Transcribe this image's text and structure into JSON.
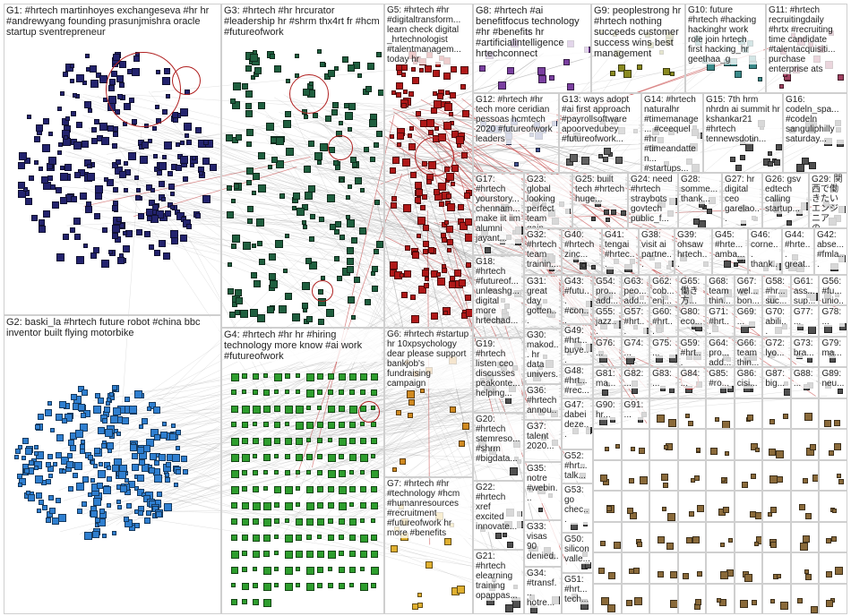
{
  "title": "",
  "groups": [
    {
      "id": "g1",
      "label": "G1: #hrtech martinhoyes exchangeseva #hr hr #andrewyang founding prasunjmishra oracle startup sventrepreneur",
      "color": "#23236e"
    },
    {
      "id": "g2",
      "label": "G2: baski_la #hrtech future robot #china bbc inventor built flying motorbike",
      "color": "#2f7fd0"
    },
    {
      "id": "g3",
      "label": "G3: #hrtech #hr hrcurator #leadership hr #shrm thx4rt fr #hcm #futureofwork",
      "color": "#1f5f3f"
    },
    {
      "id": "g4",
      "label": "G4: #hrtech #hr hr #hiring technology more know #ai work #futureofwork",
      "color": "#2e9e2e"
    },
    {
      "id": "g5",
      "label": "G5: #hrtech #hr #digitaltransform... learn check digital _hrtechnologist #talentmanagem... today hr",
      "color": "#b01818"
    },
    {
      "id": "g6",
      "label": "G6: #hrtech #startup hr 10xpsychology dear please support bankjob's fundraising campaign",
      "color": "#d08a20"
    },
    {
      "id": "g7",
      "label": "G7: #hrtech #hr #technology #hcm #humanresources #recruitment #futureofwork hr more #benefits",
      "color": "#e0b030"
    },
    {
      "id": "g8",
      "label": "G8: #hrtech #ai benefitfocus technology #hr #benefits hr #artificialintelligence hrtechconnect",
      "color": "#7a3fa0"
    },
    {
      "id": "g9",
      "label": "G9: peoplestrong hr #hrtech nothing succeeds customer success wins best management",
      "color": "#8a8a20"
    },
    {
      "id": "g10",
      "label": "G10: future #hrtech #hacking hackinghr work role join hrtech first hacking_hr geethaa_g",
      "color": "#3a8a8a"
    },
    {
      "id": "g11",
      "label": "G11: #hrtech recruitingdaily #hrtx #recruiting time candidate #talentacquisiti... purchase enterprise ats",
      "color": "#a04060"
    },
    {
      "id": "g12",
      "label": "G12: #hrtech #hr tech more ceridian pessoas hcmtech 2020 #futureofwork leaders",
      "color": "#405090"
    },
    {
      "id": "g13",
      "label": "G13: ways adopt #ai first approach #payrollsoftware apoorvedubey #futureofwork...",
      "color": "#606060"
    },
    {
      "id": "g14",
      "label": "G14: #hrtech naturalhr #timemanage... #ceequel #hr #timeandatten... #startups...",
      "color": "#505050"
    },
    {
      "id": "g15",
      "label": "G15: 7th hrm nhrdn ai summit hr kshankar21 #hrtech tennewsdotin...",
      "color": "#505050"
    },
    {
      "id": "g16",
      "label": "G16: codeln_spa... #codeln sanguliphilly saturday...",
      "color": "#505050"
    },
    {
      "id": "g17",
      "label": "G17: #hrtech yourstory... chennam... make iit iim alumni jayant...",
      "color": "#505050"
    },
    {
      "id": "g18",
      "label": "G18: #hrtech #futureof... unleashg... digital more hrtechad...",
      "color": "#505050"
    },
    {
      "id": "g19",
      "label": "G19: #hrtech listen ceo discusses peakonte... helping...",
      "color": "#505050"
    },
    {
      "id": "g20",
      "label": "G20: #hrtech stemreso... #shrm #bigdata...",
      "color": "#505050"
    },
    {
      "id": "g21",
      "label": "G21: #hrtech elearning training opappas...",
      "color": "#505050"
    },
    {
      "id": "g22",
      "label": "G22: #hrtech xref excited innovate...",
      "color": "#505050"
    },
    {
      "id": "g23",
      "label": "G23: global looking perfect team gain...",
      "color": "#505050"
    },
    {
      "id": "g24",
      "label": "G24: need #hrtech straybots govtech public_f...",
      "color": "#505050"
    },
    {
      "id": "g25",
      "label": "G25: built tech #hrtech huge...",
      "color": "#505050"
    },
    {
      "id": "g26",
      "label": "G26: gsv edtech calling startup...",
      "color": "#505050"
    },
    {
      "id": "g27",
      "label": "G27: hr digital ceo garelao...",
      "color": "#505050"
    },
    {
      "id": "g28",
      "label": "G28: somme... thank...",
      "color": "#505050"
    },
    {
      "id": "g29",
      "label": "G29: 関西で働きたいエンジニアの...",
      "color": "#505050"
    },
    {
      "id": "g30",
      "label": "G30: makod... hr data univers...",
      "color": "#505050"
    },
    {
      "id": "g31",
      "label": "G31: great day gotten...",
      "color": "#505050"
    },
    {
      "id": "g32",
      "label": "G32: #hrtech team trainin...",
      "color": "#505050"
    },
    {
      "id": "g33",
      "label": "G33: visas 90 denied...",
      "color": "#505050"
    },
    {
      "id": "g34",
      "label": "G34: #transf... hotre...",
      "color": "#505050"
    },
    {
      "id": "g35",
      "label": "G35: notre #webin...",
      "color": "#505050"
    },
    {
      "id": "g36",
      "label": "G36: #hrtech annou...",
      "color": "#505050"
    },
    {
      "id": "g37",
      "label": "G37: talent 2020...",
      "color": "#505050"
    },
    {
      "id": "g38",
      "label": "G38: visit ai partne...",
      "color": "#505050"
    },
    {
      "id": "g39",
      "label": "G39: ohsaw hrtech...",
      "color": "#505050"
    },
    {
      "id": "g40",
      "label": "G40: #hrtech zinc...",
      "color": "#505050"
    },
    {
      "id": "g41",
      "label": "G41: tengai #hrtec...",
      "color": "#505050"
    },
    {
      "id": "g42",
      "label": "G42: abse... #fmla...",
      "color": "#505050"
    },
    {
      "id": "g43",
      "label": "G43: #futu... #con... cjd_...",
      "color": "#505050"
    },
    {
      "id": "g44",
      "label": "G44: #hrte... great...",
      "color": "#505050"
    },
    {
      "id": "g45",
      "label": "G45: #hrte... amba...",
      "color": "#505050"
    },
    {
      "id": "g46",
      "label": "G46: corne... thank...",
      "color": "#505050"
    },
    {
      "id": "g47",
      "label": "G47: dabei deze...",
      "color": "#505050"
    },
    {
      "id": "g48",
      "label": "G48: #hrt... #rec...",
      "color": "#505050"
    },
    {
      "id": "g49",
      "label": "G49: #hrt... buye...",
      "color": "#505050"
    },
    {
      "id": "g50",
      "label": "G50: silicon valle...",
      "color": "#505050"
    },
    {
      "id": "g51",
      "label": "G51: #hrt... tech...",
      "color": "#505050"
    },
    {
      "id": "g52",
      "label": "G52: #hrt... talk...",
      "color": "#505050"
    },
    {
      "id": "g53",
      "label": "G53: go chec...",
      "color": "#505050"
    },
    {
      "id": "g54",
      "label": "G54: pro... add...",
      "color": "#505050"
    },
    {
      "id": "g55",
      "label": "G55: jazz... tale...",
      "color": "#505050"
    },
    {
      "id": "g56",
      "label": "G56: #fu... unio...",
      "color": "#505050"
    },
    {
      "id": "g57",
      "label": "G57: #hrt... #ai...",
      "color": "#505050"
    },
    {
      "id": "g58",
      "label": "G58: #hr... suc...",
      "color": "#505050"
    },
    {
      "id": "g59",
      "label": "G59: #hrt... hrte...",
      "color": "#505050"
    },
    {
      "id": "g60",
      "label": "G60: #hrt... edi...",
      "color": "#505050"
    },
    {
      "id": "g61",
      "label": "G61: ass... sup...",
      "color": "#505050"
    },
    {
      "id": "g62",
      "label": "G62: cob... enj...",
      "color": "#505050"
    },
    {
      "id": "g63",
      "label": "G63: peo... add...",
      "color": "#505050"
    },
    {
      "id": "g64",
      "label": "G64: pro... add...",
      "color": "#505050"
    },
    {
      "id": "g65",
      "label": "G65: 働き 方...",
      "color": "#505050"
    },
    {
      "id": "g66",
      "label": "G66: team thin...",
      "color": "#505050"
    },
    {
      "id": "g67",
      "label": "G67: wel... bon...",
      "color": "#505050"
    },
    {
      "id": "g68",
      "label": "G68: team thin...",
      "color": "#505050"
    },
    {
      "id": "g69",
      "label": "G69: ...",
      "color": "#505050"
    },
    {
      "id": "g70",
      "label": "G70: abili...",
      "color": "#505050"
    },
    {
      "id": "g71",
      "label": "G71: #hrt...",
      "color": "#505050"
    },
    {
      "id": "g72",
      "label": "G72: lyo...",
      "color": "#505050"
    },
    {
      "id": "g73",
      "label": "G73: bra...",
      "color": "#505050"
    },
    {
      "id": "g74",
      "label": "G74: ...",
      "color": "#505050"
    },
    {
      "id": "g75",
      "label": "G75: ...",
      "color": "#505050"
    },
    {
      "id": "g76",
      "label": "G76: ...",
      "color": "#505050"
    },
    {
      "id": "g77",
      "label": "G77: ...",
      "color": "#505050"
    },
    {
      "id": "g78",
      "label": "G78: ...",
      "color": "#505050"
    },
    {
      "id": "g79",
      "label": "G79: ma...",
      "color": "#505050"
    },
    {
      "id": "g80",
      "label": "G80: eco...",
      "color": "#505050"
    },
    {
      "id": "g81",
      "label": "G81: ma...",
      "color": "#505050"
    },
    {
      "id": "g82",
      "label": "G82: ...",
      "color": "#505050"
    },
    {
      "id": "g83",
      "label": "G83: ...",
      "color": "#505050"
    },
    {
      "id": "g84",
      "label": "G84: ...",
      "color": "#505050"
    },
    {
      "id": "g85",
      "label": "G85: #ro...",
      "color": "#505050"
    },
    {
      "id": "g86",
      "label": "G86: cisi...",
      "color": "#505050"
    },
    {
      "id": "g87",
      "label": "G87: big...",
      "color": "#505050"
    },
    {
      "id": "g88",
      "label": "G88: ...",
      "color": "#505050"
    },
    {
      "id": "g89",
      "label": "G89: neu...",
      "color": "#505050"
    },
    {
      "id": "g90",
      "label": "G90: hr...",
      "color": "#505050"
    },
    {
      "id": "g91",
      "label": "G91: ...",
      "color": "#505050"
    }
  ]
}
